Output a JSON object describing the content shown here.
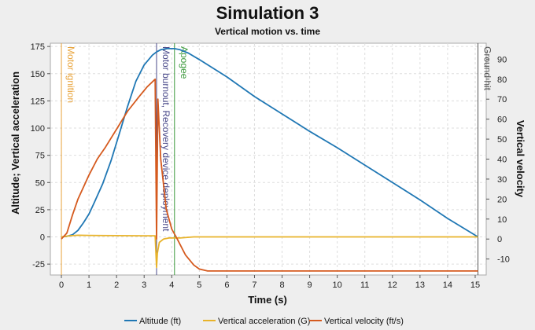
{
  "chart_data": {
    "type": "line",
    "title": "Simulation 3",
    "subtitle": "Vertical motion vs. time",
    "xlabel": "Time (s)",
    "ylabel_left": "Altitude; Vertical acceleration",
    "ylabel_right": "Vertical velocity",
    "xlim": [
      -0.4,
      15.4
    ],
    "ylim_left": [
      -35,
      178
    ],
    "ylim_right": [
      -18,
      98
    ],
    "x_ticks": [
      0,
      1,
      2,
      3,
      4,
      5,
      6,
      7,
      8,
      9,
      10,
      11,
      12,
      13,
      14,
      15
    ],
    "y_left_ticks": [
      -25,
      0,
      25,
      50,
      75,
      100,
      125,
      150,
      175
    ],
    "y_right_ticks": [
      -10,
      0,
      10,
      20,
      30,
      40,
      50,
      60,
      70,
      80,
      90
    ],
    "grid": true,
    "legend_position": "bottom",
    "events": [
      {
        "label": "Motor ignition",
        "x": 0.0,
        "color": "#e8a33a"
      },
      {
        "label": "Motor burnout, Recovery device deployment",
        "x": 3.45,
        "color": "#4a4a8a"
      },
      {
        "label": "Apogee",
        "x": 4.1,
        "color": "#3c9a3c"
      },
      {
        "label": "Ground hit",
        "x": 15.1,
        "color": "#555555"
      }
    ],
    "series": [
      {
        "name": "Altitude (ft)",
        "axis": "left",
        "color": "#1f77b4",
        "x": [
          0,
          0.2,
          0.4,
          0.6,
          0.8,
          1.0,
          1.2,
          1.5,
          1.8,
          2.1,
          2.4,
          2.7,
          3.0,
          3.3,
          3.45,
          3.6,
          3.8,
          4.0,
          4.1,
          4.3,
          4.6,
          5.0,
          6.0,
          7.0,
          8.0,
          9.0,
          10.0,
          11.0,
          12.0,
          13.0,
          14.0,
          15.1
        ],
        "values": [
          0,
          0.5,
          2,
          6,
          13,
          21,
          32,
          49,
          70,
          95,
          120,
          143,
          158,
          167,
          170,
          172,
          173,
          173,
          173,
          172,
          169,
          163,
          147,
          129,
          113,
          97,
          82,
          66,
          50,
          34,
          17,
          0
        ]
      },
      {
        "name": "Vertical acceleration (G)",
        "axis": "left",
        "color": "#e8b32a",
        "x": [
          0,
          0.15,
          0.3,
          0.6,
          1.0,
          2.0,
          3.0,
          3.4,
          3.45,
          3.48,
          3.55,
          3.7,
          3.9,
          4.3,
          4.8,
          5.5,
          10.0,
          15.1
        ],
        "values": [
          0,
          0.5,
          1,
          1.5,
          1.4,
          1.2,
          1.0,
          1.0,
          -28,
          -15,
          -5,
          -2,
          -1,
          -1,
          0,
          0,
          0,
          0
        ]
      },
      {
        "name": "Vertical velocity (ft/s)",
        "axis": "right",
        "color": "#d55a1e",
        "x": [
          0,
          0.2,
          0.4,
          0.6,
          0.8,
          1.0,
          1.3,
          1.6,
          2.0,
          2.4,
          2.8,
          3.1,
          3.4,
          3.45,
          3.5,
          3.6,
          3.8,
          4.0,
          4.2,
          4.5,
          4.8,
          5.0,
          5.3,
          6.0,
          10.0,
          15.1
        ],
        "values": [
          0,
          3,
          12,
          20,
          26,
          32,
          40,
          46,
          55,
          64,
          71,
          76,
          80,
          0,
          70,
          40,
          15,
          5,
          0,
          -8,
          -13,
          -15,
          -16,
          -16,
          -16,
          -16
        ]
      }
    ]
  }
}
